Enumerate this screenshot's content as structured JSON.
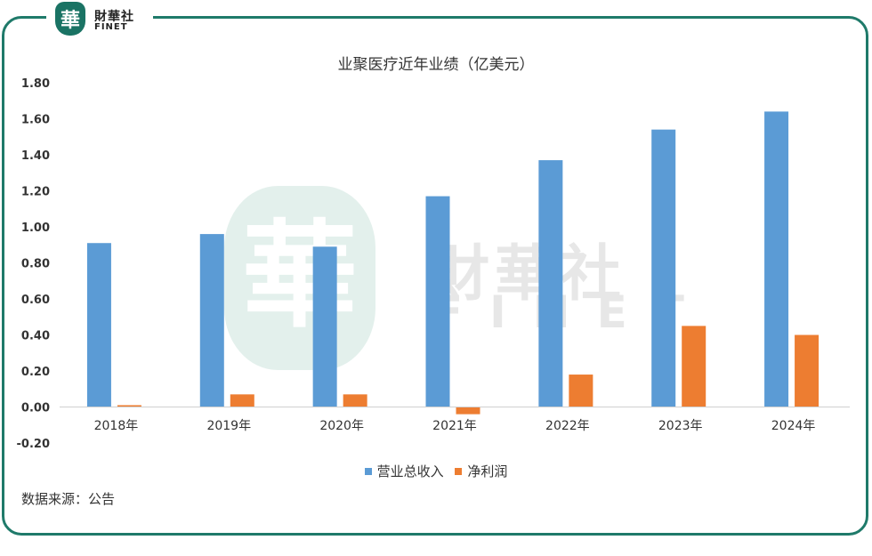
{
  "logo": {
    "seal_char": "華",
    "cn": "財華社",
    "en": "FINET"
  },
  "watermark": {
    "cn": "財華社",
    "en": "FINET"
  },
  "source": "数据来源：公告",
  "colors": {
    "revenue": "#5b9bd5",
    "profit": "#ed7d31",
    "frame": "#1f7a6a"
  },
  "chart_data": {
    "type": "bar",
    "title": "业聚医疗近年业绩（亿美元）",
    "xlabel": "",
    "ylabel": "",
    "categories": [
      "2018年",
      "2019年",
      "2020年",
      "2021年",
      "2022年",
      "2023年",
      "2024年"
    ],
    "series": [
      {
        "name": "营业总收入",
        "values": [
          0.91,
          0.96,
          0.89,
          1.17,
          1.37,
          1.54,
          1.64
        ]
      },
      {
        "name": "净利润",
        "values": [
          0.01,
          0.07,
          0.07,
          -0.04,
          0.18,
          0.45,
          0.4
        ]
      }
    ],
    "ylim": [
      -0.2,
      1.8
    ],
    "yticks": [
      "1.80",
      "1.60",
      "1.40",
      "1.20",
      "1.00",
      "0.80",
      "0.60",
      "0.40",
      "0.20",
      "0.00",
      "-0.20"
    ],
    "grid": false,
    "legend": "bottom"
  }
}
